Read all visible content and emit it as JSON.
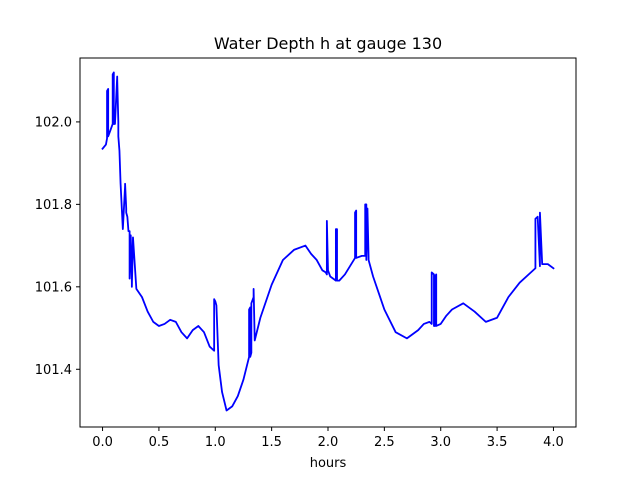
{
  "chart_data": {
    "type": "line",
    "title": "Water Depth h at gauge 130",
    "xlabel": "hours",
    "ylabel": "",
    "xlim": [
      -0.2,
      4.2
    ],
    "ylim": [
      101.26,
      102.155
    ],
    "xticks": [
      0.0,
      0.5,
      1.0,
      1.5,
      2.0,
      2.5,
      3.0,
      3.5,
      4.0
    ],
    "xtick_labels": [
      "0.0",
      "0.5",
      "1.0",
      "1.5",
      "2.0",
      "2.5",
      "3.0",
      "3.5",
      "4.0"
    ],
    "yticks": [
      101.4,
      101.6,
      101.8,
      102.0
    ],
    "ytick_labels": [
      "101.4",
      "101.6",
      "101.8",
      "102.0"
    ],
    "grid": false,
    "series": [
      {
        "color": "#0000ff",
        "x": [
          0.0,
          0.03,
          0.04,
          0.04,
          0.05,
          0.05,
          0.07,
          0.09,
          0.09,
          0.1,
          0.1,
          0.11,
          0.13,
          0.13,
          0.14,
          0.14,
          0.15,
          0.16,
          0.18,
          0.2,
          0.2,
          0.21,
          0.21,
          0.22,
          0.23,
          0.24,
          0.24,
          0.25,
          0.25,
          0.26,
          0.26,
          0.27,
          0.27,
          0.3,
          0.35,
          0.4,
          0.45,
          0.5,
          0.55,
          0.6,
          0.65,
          0.7,
          0.75,
          0.8,
          0.85,
          0.9,
          0.95,
          0.99,
          0.99,
          1.0,
          1.01,
          1.03,
          1.06,
          1.1,
          1.15,
          1.2,
          1.25,
          1.3,
          1.3,
          1.31,
          1.31,
          1.32,
          1.32,
          1.34,
          1.34,
          1.35,
          1.4,
          1.5,
          1.6,
          1.7,
          1.8,
          1.85,
          1.9,
          1.95,
          1.98,
          1.99,
          1.99,
          2.0,
          2.02,
          2.07,
          2.07,
          2.08,
          2.08,
          2.1,
          2.15,
          2.24,
          2.24,
          2.25,
          2.25,
          2.3,
          2.33,
          2.33,
          2.34,
          2.34,
          2.35,
          2.35,
          2.36,
          2.36,
          2.4,
          2.5,
          2.6,
          2.7,
          2.8,
          2.85,
          2.9,
          2.92,
          2.92,
          2.94,
          2.94,
          2.95,
          2.95,
          2.96,
          2.96,
          3.0,
          3.05,
          3.1,
          3.2,
          3.3,
          3.4,
          3.5,
          3.6,
          3.7,
          3.8,
          3.84,
          3.84,
          3.86,
          3.88,
          3.88,
          3.9,
          3.95,
          4.0
        ],
        "y": [
          101.935,
          101.945,
          101.96,
          102.075,
          102.08,
          101.965,
          101.98,
          101.995,
          102.115,
          102.12,
          101.995,
          101.995,
          102.11,
          102.105,
          102.0,
          101.965,
          101.93,
          101.85,
          101.74,
          101.845,
          101.85,
          101.79,
          101.78,
          101.77,
          101.735,
          101.735,
          101.62,
          101.725,
          101.725,
          101.61,
          101.6,
          101.72,
          101.72,
          101.595,
          101.575,
          101.54,
          101.515,
          101.505,
          101.51,
          101.52,
          101.515,
          101.49,
          101.475,
          101.495,
          101.505,
          101.49,
          101.455,
          101.445,
          101.57,
          101.565,
          101.555,
          101.41,
          101.345,
          101.3,
          101.31,
          101.335,
          101.375,
          101.43,
          101.545,
          101.55,
          101.43,
          101.44,
          101.56,
          101.575,
          101.595,
          101.47,
          101.525,
          101.605,
          101.665,
          101.69,
          101.7,
          101.68,
          101.665,
          101.64,
          101.635,
          101.63,
          101.76,
          101.64,
          101.625,
          101.615,
          101.74,
          101.74,
          101.615,
          101.615,
          101.63,
          101.67,
          101.78,
          101.785,
          101.67,
          101.675,
          101.675,
          101.8,
          101.8,
          101.665,
          101.79,
          101.79,
          101.67,
          101.665,
          101.625,
          101.545,
          101.49,
          101.475,
          101.495,
          101.51,
          101.515,
          101.51,
          101.635,
          101.63,
          101.505,
          101.505,
          101.625,
          101.63,
          101.505,
          101.51,
          101.53,
          101.545,
          101.56,
          101.54,
          101.515,
          101.525,
          101.575,
          101.61,
          101.635,
          101.645,
          101.765,
          101.77,
          101.65,
          101.78,
          101.655,
          101.655,
          101.645
        ]
      }
    ]
  }
}
